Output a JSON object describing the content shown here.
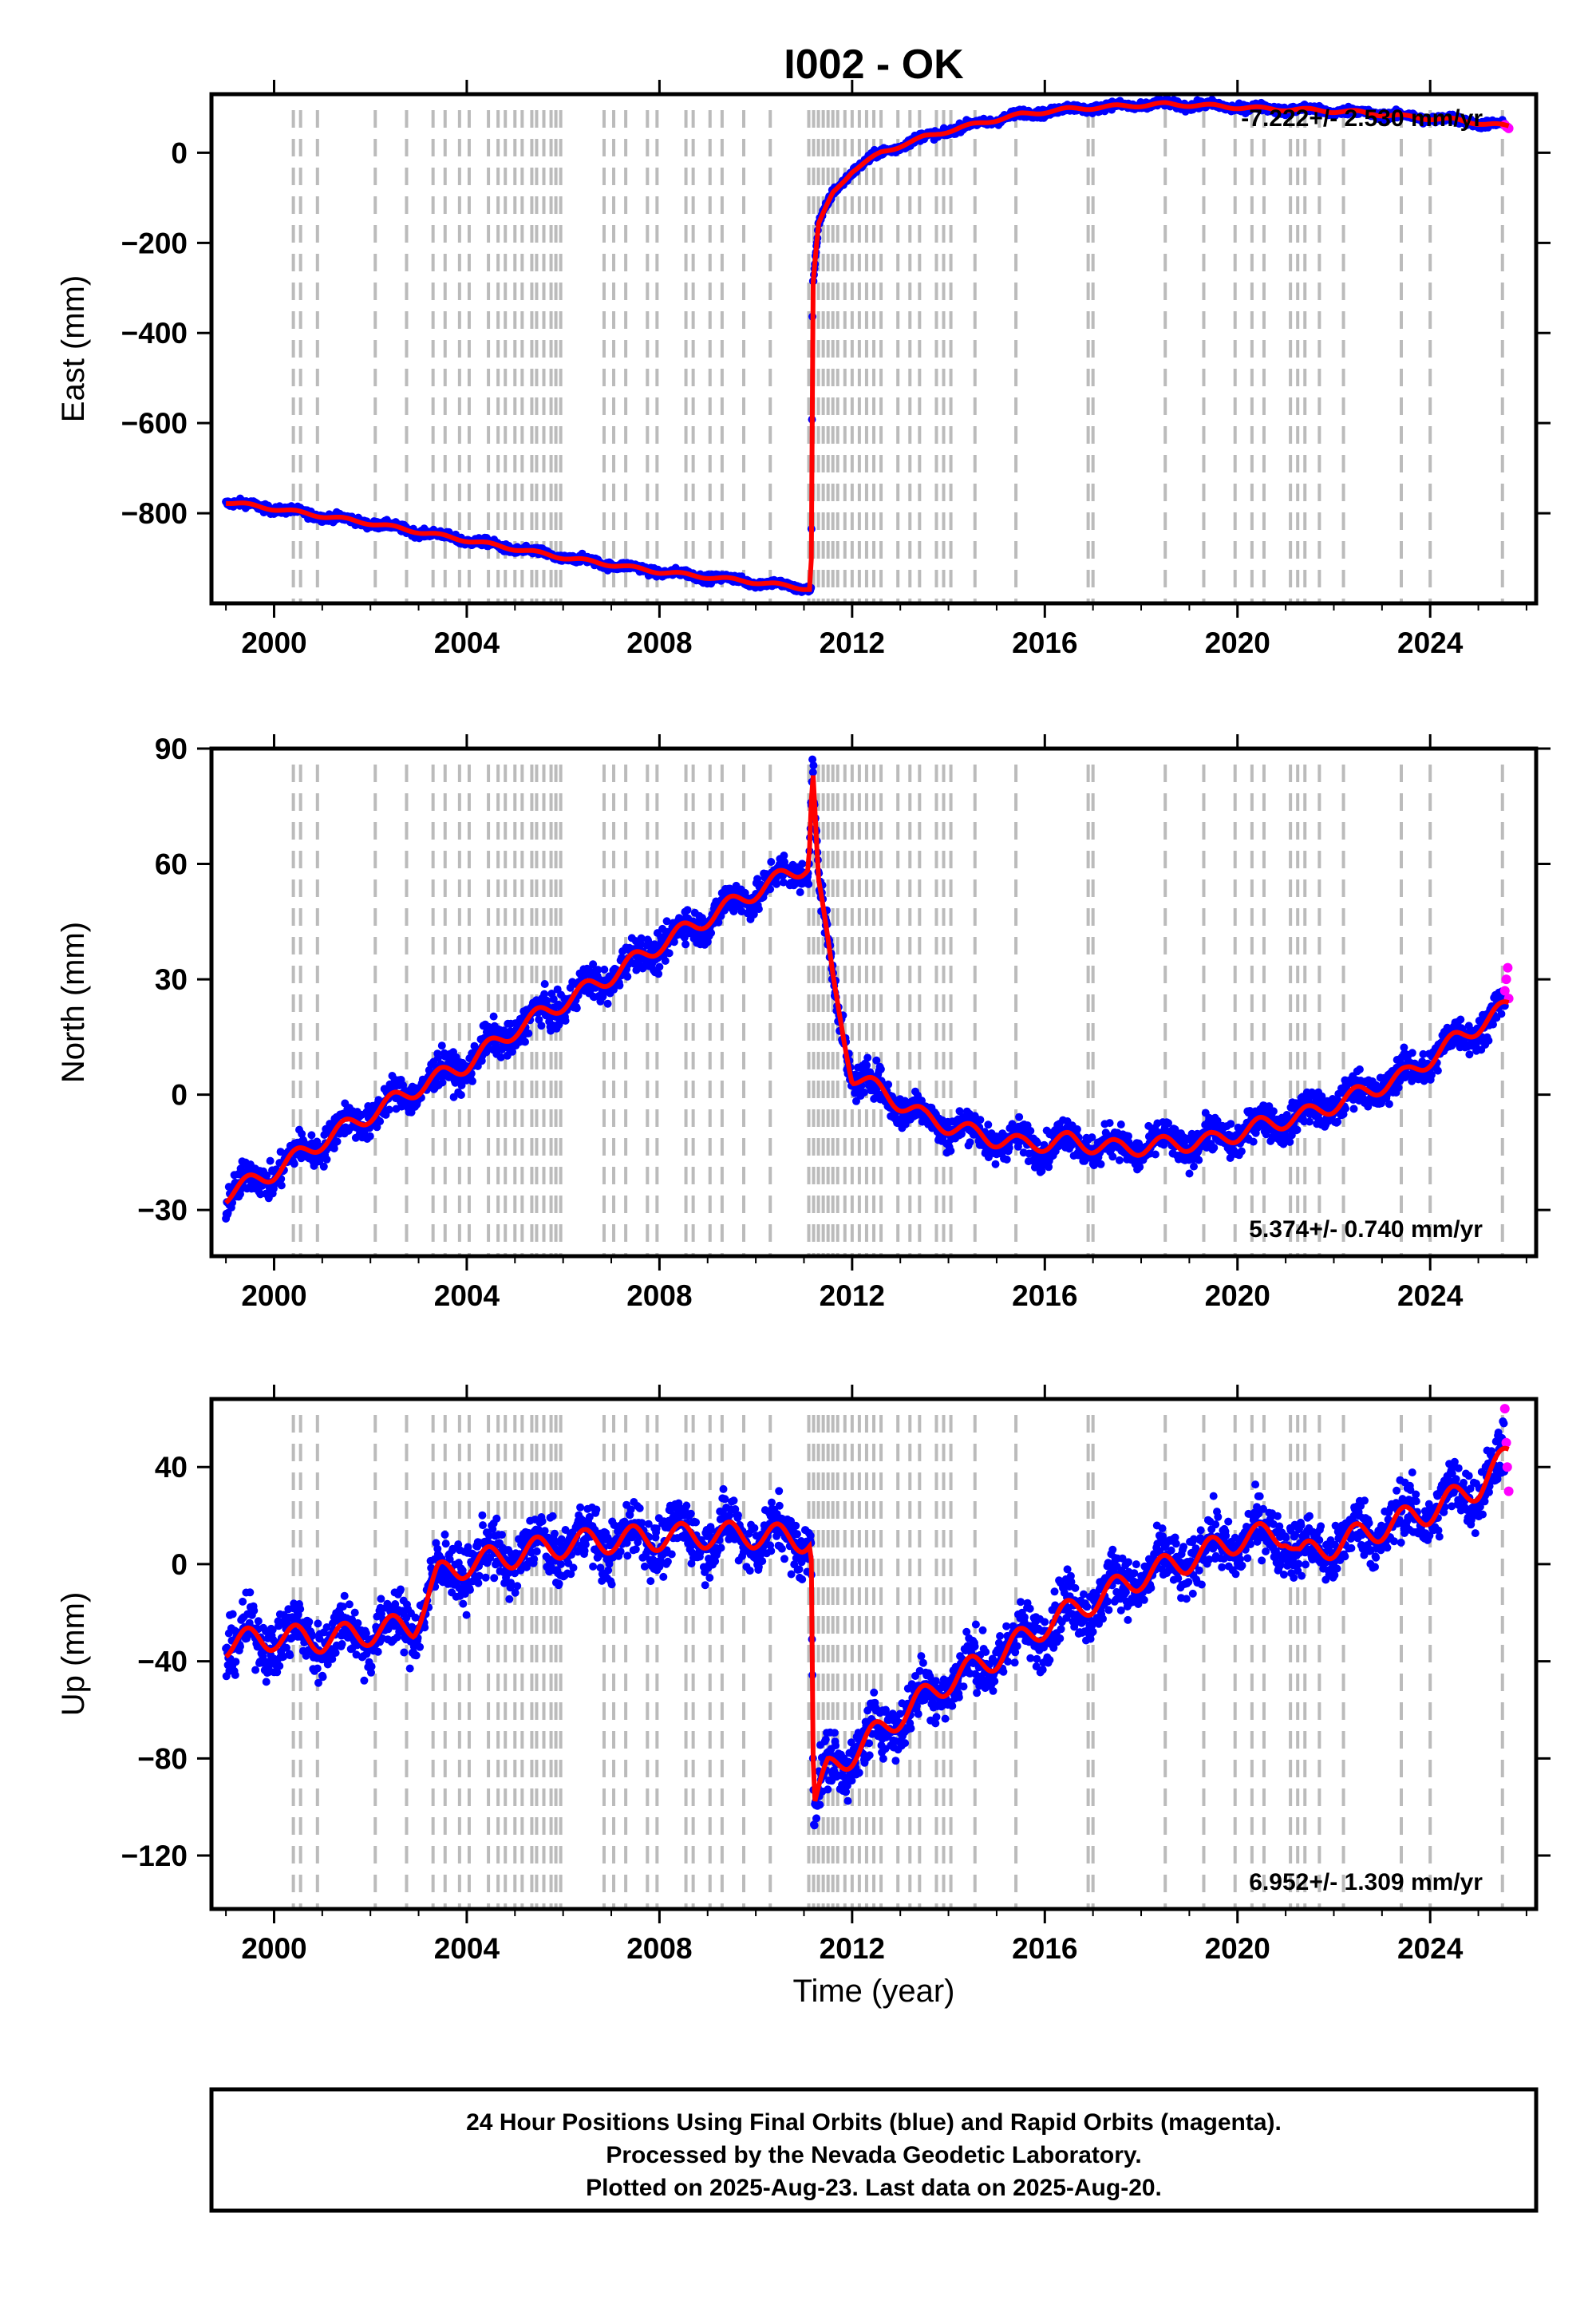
{
  "title": "I002 - OK",
  "x_axis_label": "Time (year)",
  "footer_lines": [
    "24 Hour Positions Using Final Orbits (blue) and Rapid Orbits (magenta).",
    "Processed by the Nevada Geodetic Laboratory.",
    "Plotted on 2025-Aug-23. Last data on 2025-Aug-20."
  ],
  "colors": {
    "final_orbits": "#0000ff",
    "rapid_orbits": "#ff00ff",
    "model_fit": "#ff0000",
    "equipment_change_lines": "#bbbbbb",
    "frame": "#000000"
  },
  "chart_data": [
    {
      "type": "scatter",
      "name_panel": "east",
      "ylabel": "East (mm)",
      "rate_label": "-7.222+/- 2.530 mm/yr",
      "xlim": [
        1998.7,
        2026.2
      ],
      "ylim": [
        -1000,
        130
      ],
      "xticks": [
        2000,
        2004,
        2008,
        2012,
        2016,
        2020,
        2024
      ],
      "yticks": [
        0,
        -200,
        -400,
        -600,
        -800
      ],
      "fit_points": [
        [
          1999.0,
          -775
        ],
        [
          2000.0,
          -790
        ],
        [
          2002.0,
          -822
        ],
        [
          2004.0,
          -860
        ],
        [
          2006.0,
          -898
        ],
        [
          2008.0,
          -930
        ],
        [
          2010.0,
          -953
        ],
        [
          2011.15,
          -968
        ],
        [
          2011.18,
          -300
        ],
        [
          2011.3,
          -160
        ],
        [
          2011.6,
          -90
        ],
        [
          2012.0,
          -40
        ],
        [
          2012.6,
          0
        ],
        [
          2013.5,
          35
        ],
        [
          2014.5,
          62
        ],
        [
          2015.5,
          85
        ],
        [
          2016.5,
          97
        ],
        [
          2017.5,
          103
        ],
        [
          2018.5,
          108
        ],
        [
          2019.5,
          104
        ],
        [
          2020.5,
          98
        ],
        [
          2021.5,
          95
        ],
        [
          2022.5,
          90
        ],
        [
          2023.5,
          80
        ],
        [
          2024.5,
          73
        ],
        [
          2025.63,
          58
        ]
      ],
      "rapid_points": [
        [
          2025.55,
          62
        ],
        [
          2025.58,
          58
        ],
        [
          2025.61,
          56
        ],
        [
          2025.63,
          54
        ]
      ],
      "noise_mm": 6,
      "seasonal_mm": 4
    },
    {
      "type": "scatter",
      "name_panel": "north",
      "ylabel": "North (mm)",
      "rate_label": "5.374+/- 0.740 mm/yr",
      "xlim": [
        1998.7,
        2026.2
      ],
      "ylim": [
        -42,
        90
      ],
      "xticks": [
        2000,
        2004,
        2008,
        2012,
        2016,
        2020,
        2024
      ],
      "yticks": [
        90,
        60,
        30,
        0,
        -30
      ],
      "fit_points": [
        [
          1999.0,
          -26
        ],
        [
          2000.0,
          -20
        ],
        [
          2001.0,
          -12
        ],
        [
          2002.0,
          -5
        ],
        [
          2003.0,
          2
        ],
        [
          2004.0,
          8
        ],
        [
          2005.0,
          17
        ],
        [
          2006.0,
          24
        ],
        [
          2007.0,
          31
        ],
        [
          2008.0,
          39
        ],
        [
          2009.0,
          46
        ],
        [
          2010.0,
          53
        ],
        [
          2011.1,
          60
        ],
        [
          2011.18,
          86
        ],
        [
          2011.3,
          55
        ],
        [
          2011.6,
          30
        ],
        [
          2012.0,
          5
        ],
        [
          2012.6,
          1
        ],
        [
          2013.5,
          -6
        ],
        [
          2014.5,
          -10
        ],
        [
          2015.5,
          -13
        ],
        [
          2016.5,
          -12
        ],
        [
          2017.5,
          -14
        ],
        [
          2018.5,
          -13
        ],
        [
          2019.5,
          -12
        ],
        [
          2020.5,
          -8
        ],
        [
          2021.5,
          -5
        ],
        [
          2022.5,
          0
        ],
        [
          2023.5,
          5
        ],
        [
          2024.5,
          14
        ],
        [
          2025.63,
          23
        ]
      ],
      "rapid_points": [
        [
          2025.55,
          27
        ],
        [
          2025.58,
          30
        ],
        [
          2025.61,
          33
        ],
        [
          2025.63,
          25
        ]
      ],
      "noise_mm": 3,
      "seasonal_mm": 2.5
    },
    {
      "type": "scatter",
      "name_panel": "up",
      "ylabel": "Up (mm)",
      "rate_label": "6.952+/- 1.309 mm/yr",
      "xlim": [
        1998.7,
        2026.2
      ],
      "ylim": [
        -142,
        68
      ],
      "xticks": [
        2000,
        2004,
        2008,
        2012,
        2016,
        2020,
        2024
      ],
      "yticks": [
        40,
        0,
        -40,
        -80,
        -120
      ],
      "fit_points": [
        [
          1999.0,
          -33
        ],
        [
          2000.0,
          -30
        ],
        [
          2001.0,
          -31
        ],
        [
          2002.0,
          -28
        ],
        [
          2002.9,
          -25
        ],
        [
          2003.4,
          -5
        ],
        [
          2004.0,
          0
        ],
        [
          2005.0,
          4
        ],
        [
          2006.0,
          8
        ],
        [
          2007.0,
          10
        ],
        [
          2008.0,
          11
        ],
        [
          2009.0,
          12
        ],
        [
          2010.0,
          12
        ],
        [
          2011.15,
          10
        ],
        [
          2011.2,
          -100
        ],
        [
          2011.5,
          -85
        ],
        [
          2012.0,
          -78
        ],
        [
          2013.0,
          -62
        ],
        [
          2014.0,
          -48
        ],
        [
          2015.0,
          -38
        ],
        [
          2016.0,
          -25
        ],
        [
          2017.0,
          -15
        ],
        [
          2018.0,
          -5
        ],
        [
          2019.0,
          2
        ],
        [
          2020.0,
          10
        ],
        [
          2021.0,
          13
        ],
        [
          2021.3,
          3
        ],
        [
          2022.0,
          8
        ],
        [
          2023.0,
          15
        ],
        [
          2024.0,
          22
        ],
        [
          2025.0,
          32
        ],
        [
          2025.63,
          45
        ]
      ],
      "rapid_points": [
        [
          2025.55,
          64
        ],
        [
          2025.58,
          50
        ],
        [
          2025.6,
          40
        ],
        [
          2025.63,
          30
        ]
      ],
      "noise_mm": 8,
      "seasonal_mm": 6
    }
  ],
  "equipment_change_years": [
    2000.4,
    2000.55,
    2000.9,
    2002.1,
    2002.75,
    2003.3,
    2003.55,
    2003.85,
    2004.05,
    2004.45,
    2004.65,
    2004.8,
    2005.0,
    2005.15,
    2005.35,
    2005.45,
    2005.6,
    2005.75,
    2005.85,
    2005.95,
    2006.85,
    2007.05,
    2007.3,
    2007.75,
    2007.95,
    2008.55,
    2008.7,
    2009.05,
    2009.3,
    2009.75,
    2010.3,
    2011.1,
    2011.2,
    2011.3,
    2011.4,
    2011.5,
    2011.6,
    2011.7,
    2011.85,
    2012.0,
    2012.15,
    2012.3,
    2012.45,
    2012.6,
    2012.95,
    2013.2,
    2013.4,
    2013.75,
    2013.9,
    2014.05,
    2014.55,
    2015.4,
    2016.9,
    2017.0,
    2018.5,
    2019.3,
    2019.95,
    2020.3,
    2020.55,
    2021.1,
    2021.25,
    2021.4,
    2021.7,
    2022.2,
    2023.4,
    2024.0,
    2025.5
  ]
}
